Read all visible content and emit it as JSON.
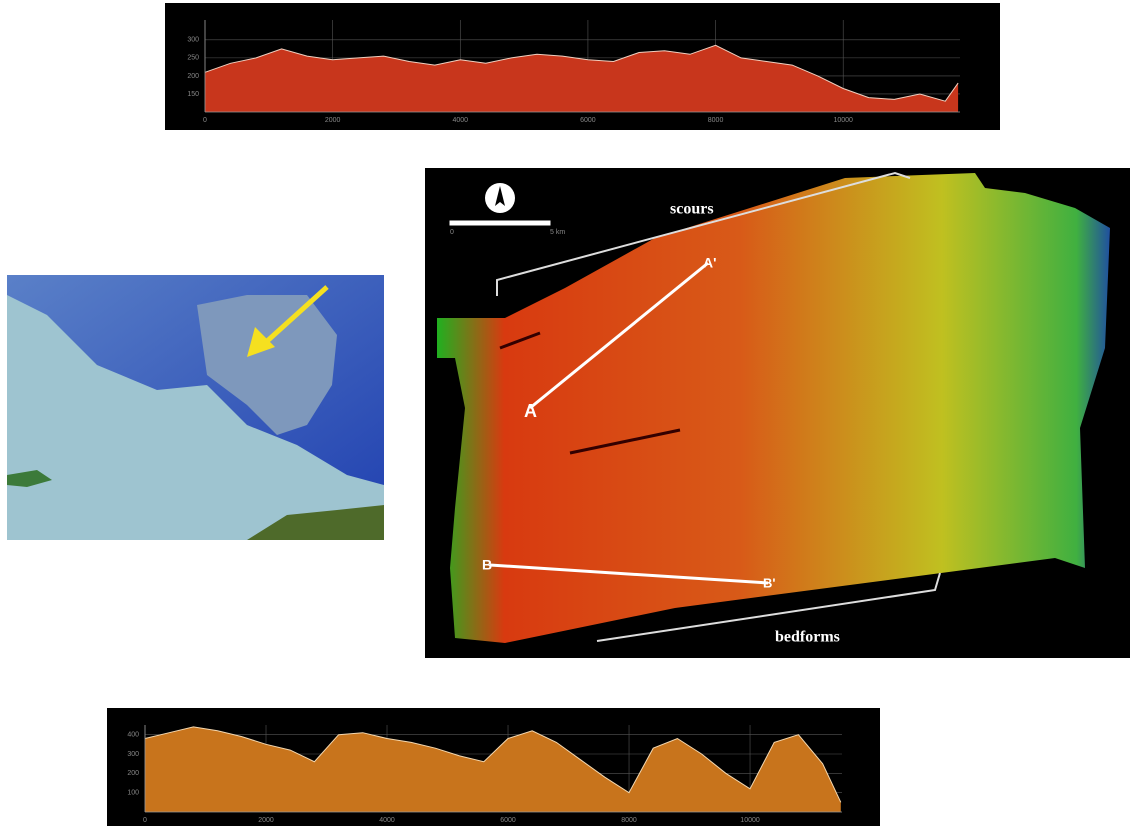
{
  "chart_data": [
    {
      "type": "area",
      "color": "#c8361c",
      "line_color": "#f0d0c0",
      "x": [
        0,
        400,
        800,
        1200,
        1600,
        2000,
        2400,
        2800,
        3200,
        3600,
        4000,
        4400,
        4800,
        5200,
        5600,
        6000,
        6400,
        6800,
        7200,
        7600,
        8000,
        8400,
        8800,
        9200,
        9600,
        10000,
        10400,
        10800,
        11200,
        11600,
        11800
      ],
      "values": [
        210,
        235,
        250,
        275,
        255,
        245,
        250,
        255,
        240,
        230,
        245,
        235,
        250,
        260,
        255,
        245,
        240,
        265,
        270,
        260,
        285,
        250,
        240,
        230,
        200,
        165,
        140,
        135,
        150,
        130,
        180
      ],
      "xlim": [
        0,
        11830
      ],
      "xticks": [
        0,
        2000,
        4000,
        6000,
        8000,
        10000
      ],
      "ylim": [
        100,
        355
      ],
      "yticks": [
        150,
        200,
        250,
        300
      ],
      "grid": true
    },
    {
      "type": "area",
      "color": "#c8741c",
      "line_color": "#f4d8b0",
      "x": [
        0,
        400,
        800,
        1200,
        1600,
        2000,
        2400,
        2800,
        3200,
        3600,
        4000,
        4400,
        4800,
        5200,
        5600,
        6000,
        6400,
        6800,
        7200,
        7600,
        8000,
        8400,
        8800,
        9200,
        9600,
        10000,
        10400,
        10800,
        11200,
        11500
      ],
      "values": [
        380,
        410,
        440,
        420,
        390,
        350,
        320,
        260,
        400,
        410,
        380,
        360,
        330,
        290,
        260,
        380,
        420,
        360,
        270,
        180,
        100,
        330,
        380,
        300,
        200,
        120,
        360,
        400,
        250,
        50
      ],
      "xlim": [
        0,
        11520
      ],
      "xticks": [
        0,
        2000,
        4000,
        6000,
        8000,
        10000
      ],
      "ylim": [
        0,
        450
      ],
      "yticks": [
        100,
        200,
        300,
        400
      ],
      "grid": true
    }
  ],
  "map": {
    "scours": "scours",
    "bedforms": "bedforms",
    "a_start": "A",
    "a_end": "A'",
    "b_start": "B",
    "b_end": "B'",
    "scale_start": "0",
    "scale_end": "5 km"
  }
}
